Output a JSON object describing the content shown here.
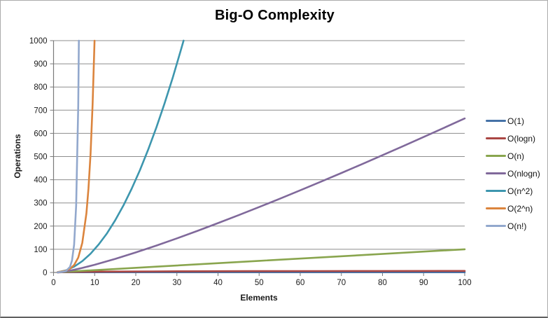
{
  "window": {
    "background": "#ffffff",
    "border_color": "#ababab"
  },
  "chart_data": {
    "type": "line",
    "title": "Big-O Complexity",
    "xlabel": "Elements",
    "ylabel": "Operations",
    "xlim": [
      0,
      100
    ],
    "ylim": [
      0,
      1000
    ],
    "xtick_step": 10,
    "ytick_step": 100,
    "grid": true,
    "gridline_color": "#8d8d8d",
    "axis_color": "#7a7a7a",
    "tick_label_color": "#1a1a1a",
    "legend_position": "right",
    "series": [
      {
        "name": "O(1)",
        "color": "#4572A7",
        "x": [
          1,
          100
        ],
        "y": [
          1,
          1
        ]
      },
      {
        "name": "O(logn)",
        "color": "#AA4643",
        "x": [
          1,
          1.5,
          2,
          3,
          4,
          6,
          8,
          12,
          16,
          24,
          32,
          48,
          64,
          80,
          100
        ],
        "y": [
          0,
          0.6,
          1,
          1.6,
          2,
          2.6,
          3,
          3.6,
          4,
          4.6,
          5,
          5.6,
          6,
          6.3,
          6.6
        ]
      },
      {
        "name": "O(n)",
        "color": "#89A54E",
        "x": [
          1,
          25,
          50,
          75,
          100
        ],
        "y": [
          1,
          25,
          50,
          75,
          100
        ]
      },
      {
        "name": "O(nlogn)",
        "color": "#80699B",
        "x": [
          1,
          2,
          3,
          4,
          5,
          7,
          10,
          15,
          20,
          25,
          30,
          35,
          40,
          45,
          50,
          55,
          60,
          65,
          70,
          75,
          80,
          85,
          90,
          95,
          100
        ],
        "y": [
          0,
          2,
          4.8,
          8,
          11.6,
          19.7,
          33.2,
          58.6,
          86.4,
          116.1,
          147.2,
          179.4,
          212.9,
          247.1,
          282.2,
          317.9,
          354.4,
          391.5,
          429.1,
          467.2,
          505.8,
          544.8,
          584.3,
          624.1,
          664.4
        ]
      },
      {
        "name": "O(n^2)",
        "color": "#3D96AE",
        "x": [
          1,
          3,
          5,
          7,
          9,
          11,
          13,
          15,
          17,
          19,
          21,
          23,
          25,
          27,
          29,
          31,
          31.62
        ],
        "y": [
          1,
          9,
          25,
          49,
          81,
          121,
          169,
          225,
          289,
          361,
          441,
          529,
          625,
          729,
          841,
          961,
          1000
        ]
      },
      {
        "name": "O(2^n)",
        "color": "#DB843D",
        "x": [
          1,
          2,
          3,
          4,
          5,
          6,
          7,
          8,
          8.5,
          9,
          9.5,
          9.97
        ],
        "y": [
          2,
          4,
          8,
          16,
          32,
          64,
          128,
          256,
          362,
          512,
          724,
          1000
        ]
      },
      {
        "name": "O(n!)",
        "color": "#92A8CD",
        "x": [
          1,
          2,
          3,
          4,
          4.5,
          5,
          5.5,
          6,
          6.17
        ],
        "y": [
          1,
          2,
          6,
          24,
          52.3,
          120,
          287.9,
          720,
          1000
        ]
      }
    ]
  }
}
